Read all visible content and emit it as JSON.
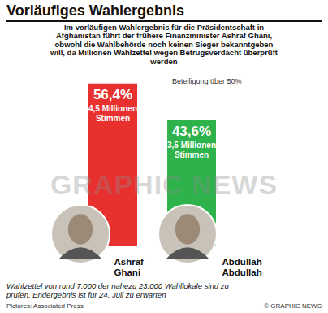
{
  "chart_data": {
    "type": "bar",
    "title": "Vorläufiges Wahlergebnis",
    "subtitle": "Im vorläufigen Wahlergebnis für die Präsidentschaft in Afghanistan führt der frühere Finanzminister Ashraf Ghani, obwohl die Wahlbehörde noch keinen Sieger bekanntgeben will, da Millionen Wahlzettel wegen Betrugsverdacht überprüft werden",
    "categories": [
      "Ashraf Ghani",
      "Abdullah Abdullah"
    ],
    "values": [
      56.4,
      43.6
    ],
    "value_labels": [
      "56,4%",
      "43,6%"
    ],
    "vote_labels": [
      "4,5 Millionen Stimmen",
      "3,5 Millionen Stimmen"
    ],
    "colors": [
      "#e8312f",
      "#2eb24b"
    ],
    "ylim": [
      0,
      60
    ],
    "yticks": [
      0,
      60
    ],
    "tick_labels": false,
    "data_labels": true,
    "annotations": [
      "Beteiligung über 50%"
    ],
    "watermark": "GRAPHIC NEWS",
    "footnote": "Wahlzettel von rund 7.000 der nahezu 23.000 Wahllokale sind zu prüfen. Endergebnis ist für 24. Juli zu erwarten",
    "credit": "Pictures: Associated Press",
    "source": "© GRAPHIC NEWS"
  }
}
